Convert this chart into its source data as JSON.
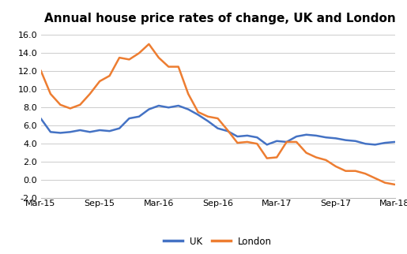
{
  "title": "Annual house price rates of change, UK and London",
  "uk_y": [
    6.8,
    5.3,
    5.2,
    5.3,
    5.5,
    5.3,
    5.5,
    5.4,
    5.7,
    6.8,
    7.0,
    7.8,
    8.2,
    8.0,
    8.2,
    7.8,
    7.2,
    6.5,
    5.7,
    5.4,
    4.8,
    4.9,
    4.7,
    3.9,
    4.3,
    4.2,
    4.8,
    5.0,
    4.9,
    4.7,
    4.6,
    4.4,
    4.3,
    4.0,
    3.9,
    4.1,
    4.2
  ],
  "london_y": [
    12.1,
    9.5,
    8.3,
    7.9,
    8.3,
    9.5,
    10.9,
    11.5,
    13.5,
    13.3,
    14.0,
    15.0,
    13.5,
    12.5,
    12.5,
    9.5,
    7.5,
    7.0,
    6.8,
    5.5,
    4.1,
    4.2,
    4.0,
    2.4,
    2.5,
    4.2,
    4.2,
    3.0,
    2.5,
    2.2,
    1.5,
    1.0,
    1.0,
    0.7,
    0.2,
    -0.3,
    -0.5
  ],
  "xtick_positions": [
    0,
    6,
    12,
    18,
    24,
    30,
    36
  ],
  "xtick_labels": [
    "Mar-15",
    "Sep-15",
    "Mar-16",
    "Sep-16",
    "Mar-17",
    "Sep-17",
    "Mar-18"
  ],
  "ylim": [
    -2.0,
    16.5
  ],
  "ytick_values": [
    -2.0,
    0.0,
    2.0,
    4.0,
    6.0,
    8.0,
    10.0,
    12.0,
    14.0,
    16.0
  ],
  "uk_color": "#4472C4",
  "london_color": "#ED7D31",
  "line_width": 1.8,
  "background_color": "#ffffff",
  "grid_color": "#cccccc",
  "title_fontsize": 11,
  "tick_fontsize": 8
}
